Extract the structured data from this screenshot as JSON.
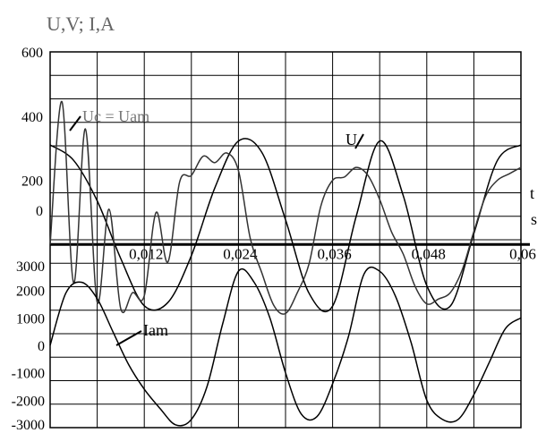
{
  "chart_data": {
    "type": "line",
    "title": "U,V; I,A",
    "x_unit": "s",
    "x_symbol": "t",
    "xlim": [
      0,
      0.06
    ],
    "x_ticks": [
      {
        "value": 0.012,
        "label": "0,012"
      },
      {
        "value": 0.024,
        "label": "0,024"
      },
      {
        "value": 0.036,
        "label": "0,036"
      },
      {
        "value": 0.048,
        "label": "0,048"
      },
      {
        "value": 0.06,
        "label": "0,06"
      }
    ],
    "x_origin_label": "0",
    "voltage_axis": {
      "ylim": [
        -200,
        600
      ],
      "ticks": [
        {
          "value": 600,
          "label": "600"
        },
        {
          "value": 400,
          "label": "400"
        },
        {
          "value": 200,
          "label": "200"
        }
      ]
    },
    "current_axis": {
      "ylim": [
        -3000,
        3000
      ],
      "ticks": [
        {
          "value": 3000,
          "label": "3000"
        },
        {
          "value": 2000,
          "label": "2000"
        },
        {
          "value": 1000,
          "label": "1000"
        },
        {
          "value": 0,
          "label": "0"
        },
        {
          "value": -1000,
          "label": "-1000"
        },
        {
          "value": -2000,
          "label": "-2000"
        },
        {
          "value": -3000,
          "label": "-3000"
        }
      ]
    },
    "series": [
      {
        "name": "U",
        "axis": "voltage",
        "color": "#000000",
        "x": [
          0,
          0.003,
          0.006,
          0.009,
          0.012,
          0.015,
          0.018,
          0.021,
          0.024,
          0.027,
          0.03,
          0.033,
          0.036,
          0.039,
          0.042,
          0.045,
          0.048,
          0.051,
          0.054,
          0.057,
          0.06
        ],
        "y": [
          310,
          262,
          136,
          -44,
          -191,
          -181,
          -35,
          177,
          322,
          286,
          77,
          -152,
          -192,
          87,
          322,
          152,
          -128,
          -192,
          34,
          262,
          310
        ]
      },
      {
        "name": "Uc = Uam",
        "axis": "voltage",
        "color": "#333333",
        "x": [
          0,
          0.0015,
          0.003,
          0.0045,
          0.006,
          0.0075,
          0.009,
          0.0105,
          0.012,
          0.0135,
          0.015,
          0.0165,
          0.018,
          0.0195,
          0.021,
          0.0225,
          0.024,
          0.0255,
          0.027,
          0.0285,
          0.03,
          0.0315,
          0.033,
          0.0345,
          0.036,
          0.0375,
          0.039,
          0.0405,
          0.042,
          0.0435,
          0.045,
          0.0465,
          0.048,
          0.0495,
          0.051,
          0.0525,
          0.054,
          0.0555,
          0.057,
          0.0585,
          0.06
        ],
        "y": [
          0,
          445,
          -120,
          360,
          -180,
          110,
          -200,
          -150,
          -160,
          100,
          -55,
          195,
          215,
          275,
          255,
          285,
          230,
          20,
          -90,
          -190,
          -215,
          -150,
          -60,
          120,
          200,
          210,
          240,
          215,
          140,
          40,
          -30,
          -130,
          -185,
          -170,
          -150,
          -80,
          40,
          150,
          200,
          220,
          240
        ]
      },
      {
        "name": "Iam",
        "axis": "current",
        "color": "#000000",
        "x": [
          0,
          0.002,
          0.004,
          0.006,
          0.008,
          0.01,
          0.012,
          0.014,
          0.016,
          0.018,
          0.02,
          0.022,
          0.024,
          0.026,
          0.028,
          0.03,
          0.032,
          0.034,
          0.036,
          0.038,
          0.04,
          0.042,
          0.044,
          0.046,
          0.048,
          0.05,
          0.052,
          0.054,
          0.056,
          0.058,
          0.06
        ],
        "y": [
          0,
          1900,
          2300,
          1700,
          500,
          -700,
          -1600,
          -2300,
          -2900,
          -2700,
          -1500,
          800,
          2700,
          2300,
          1000,
          -1000,
          -2500,
          -2600,
          -1400,
          300,
          2600,
          2700,
          1800,
          100,
          -2000,
          -2700,
          -2700,
          -1800,
          -600,
          600,
          1000
        ]
      }
    ],
    "annotations": [
      {
        "text": "U",
        "series": "U"
      },
      {
        "text": "Uc = Uam",
        "series": "Uc = Uam"
      },
      {
        "text": "Iam",
        "series": "Iam"
      }
    ],
    "grid": true
  }
}
